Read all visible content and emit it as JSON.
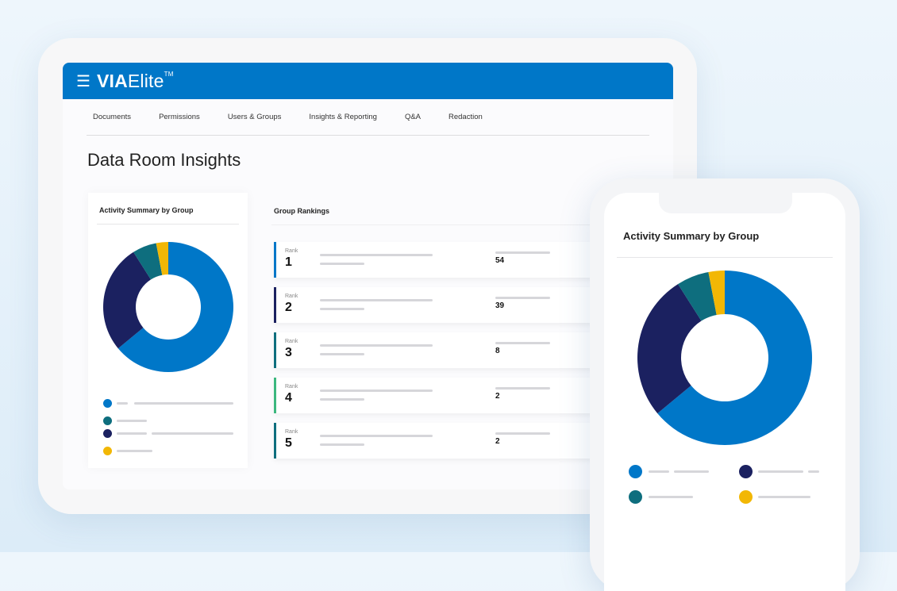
{
  "app": {
    "logo_bold": "VIA",
    "logo_light": "Elite",
    "logo_tm": "TM",
    "menu_icon": "hamburger-icon"
  },
  "nav": [
    "Documents",
    "Permissions",
    "Users & Groups",
    "Insights & Reporting",
    "Q&A",
    "Redaction"
  ],
  "page_title": "Data Room Insights",
  "activity_card": {
    "title": "Activity Summary by Group"
  },
  "rankings_card": {
    "title": "Group Rankings",
    "rank_label": "Rank",
    "rows": [
      {
        "rank": "1",
        "value": "54",
        "color": "#0077c8"
      },
      {
        "rank": "2",
        "value": "39",
        "color": "#1b2160"
      },
      {
        "rank": "3",
        "value": "8",
        "color": "#0e6e7e"
      },
      {
        "rank": "4",
        "value": "2",
        "color": "#3bb77e"
      },
      {
        "rank": "5",
        "value": "2",
        "color": "#0e6e7e"
      }
    ]
  },
  "phone": {
    "title": "Activity Summary by Group"
  },
  "chart_data": {
    "type": "pie",
    "title": "Activity Summary by Group",
    "values": [
      64,
      27,
      6,
      3
    ],
    "colors": [
      "#0077c8",
      "#1b2160",
      "#0e6e7e",
      "#f2b705"
    ],
    "hole": 0.5
  }
}
